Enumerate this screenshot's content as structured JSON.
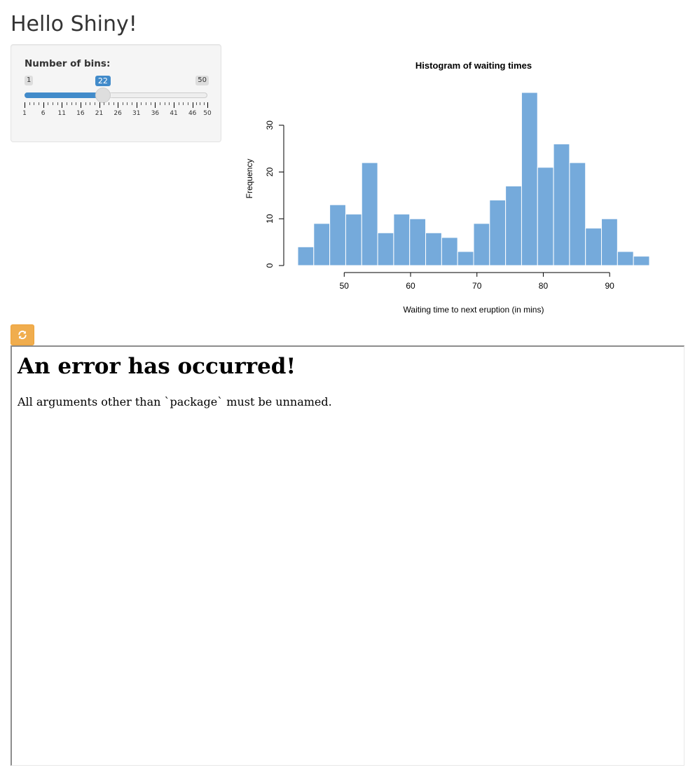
{
  "page": {
    "title": "Hello Shiny!"
  },
  "sidebar": {
    "slider": {
      "label": "Number of bins:",
      "min": 1,
      "max": 50,
      "value": 22,
      "min_label": "1",
      "max_label": "50",
      "value_label": "22",
      "tick_labels": [
        "1",
        "6",
        "11",
        "16",
        "21",
        "26",
        "31",
        "36",
        "41",
        "46",
        "50"
      ],
      "accent_color": "#428bca"
    }
  },
  "chart_data": {
    "type": "bar",
    "title": "Histogram of waiting times",
    "xlabel": "Waiting time to next eruption (in mins)",
    "ylabel": "Frequency",
    "bar_color": "#75AADB",
    "bin_start": 43,
    "bin_width": 2.409,
    "values": [
      4,
      9,
      13,
      11,
      22,
      7,
      11,
      10,
      7,
      6,
      3,
      9,
      14,
      17,
      37,
      21,
      26,
      22,
      8,
      10,
      3,
      2
    ],
    "xlim": [
      43,
      96
    ],
    "ylim": [
      0,
      37
    ],
    "x_ticks": [
      "50",
      "60",
      "70",
      "80",
      "90"
    ],
    "y_ticks": [
      "0",
      "10",
      "20",
      "30"
    ]
  },
  "toolbar": {
    "refresh_icon": "refresh-icon",
    "refresh_color": "#f0ad4e"
  },
  "error": {
    "heading": "An error has occurred!",
    "message": "All arguments other than `package` must be unnamed."
  }
}
